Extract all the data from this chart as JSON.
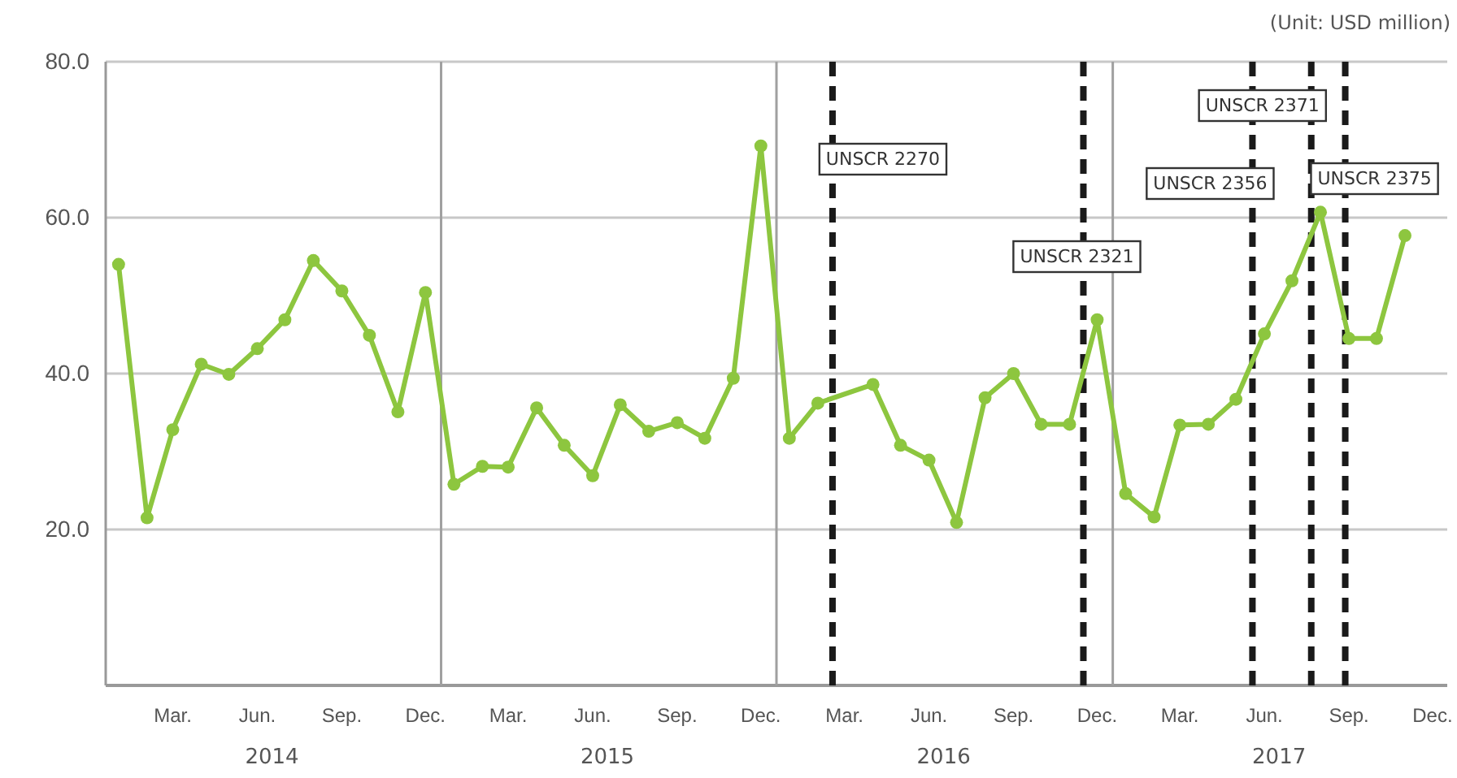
{
  "chart_data": {
    "type": "line",
    "x": [
      "2014-01-15",
      "2014-02-15",
      "2014-03-15",
      "2014-04-15",
      "2014-05-15",
      "2014-06-15",
      "2014-07-15",
      "2014-08-15",
      "2014-09-15",
      "2014-10-15",
      "2014-11-15",
      "2014-12-15",
      "2015-01-15",
      "2015-02-15",
      "2015-03-15",
      "2015-04-15",
      "2015-05-15",
      "2015-06-15",
      "2015-07-15",
      "2015-08-15",
      "2015-09-15",
      "2015-10-15",
      "2015-11-15",
      "2015-12-15",
      "2016-01-15",
      "2016-02-15",
      "2016-04-15",
      "2016-05-15",
      "2016-06-15",
      "2016-07-15",
      "2016-08-15",
      "2016-09-15",
      "2016-10-15",
      "2016-11-15",
      "2016-12-15",
      "2017-01-15",
      "2017-02-15",
      "2017-03-15",
      "2017-04-15",
      "2017-05-15",
      "2017-06-15",
      "2017-07-15",
      "2017-08-15",
      "2017-09-15",
      "2017-10-15",
      "2017-11-15"
    ],
    "series": [
      {
        "color": "#8dc63f",
        "values": [
          54.0,
          21.5,
          32.8,
          41.2,
          39.9,
          43.2,
          46.9,
          54.5,
          50.6,
          44.9,
          35.1,
          50.4,
          25.8,
          28.1,
          28.0,
          35.6,
          30.8,
          26.9,
          36.0,
          32.6,
          33.7,
          31.7,
          39.4,
          69.2,
          31.7,
          36.2,
          38.6,
          30.8,
          28.9,
          20.9,
          36.9,
          40.0,
          33.5,
          33.5,
          46.9,
          24.6,
          21.6,
          33.4,
          33.5,
          36.7,
          45.1,
          51.9,
          60.7,
          44.5,
          44.5,
          57.7
        ]
      }
    ],
    "xlim": [
      "2014-01-01",
      "2017-12-31"
    ],
    "xticks": [
      {
        "value": "2014-03-15",
        "label": "Mar."
      },
      {
        "value": "2014-06-15",
        "label": "Jun."
      },
      {
        "value": "2014-09-15",
        "label": "Sep."
      },
      {
        "value": "2014-12-15",
        "label": "Dec."
      },
      {
        "value": "2015-03-15",
        "label": "Mar."
      },
      {
        "value": "2015-06-15",
        "label": "Jun."
      },
      {
        "value": "2015-09-15",
        "label": "Sep."
      },
      {
        "value": "2015-12-15",
        "label": "Dec."
      },
      {
        "value": "2016-03-15",
        "label": "Mar."
      },
      {
        "value": "2016-06-15",
        "label": "Jun."
      },
      {
        "value": "2016-09-15",
        "label": "Sep."
      },
      {
        "value": "2016-12-15",
        "label": "Dec."
      },
      {
        "value": "2017-03-15",
        "label": "Mar."
      },
      {
        "value": "2017-06-15",
        "label": "Jun."
      },
      {
        "value": "2017-09-15",
        "label": "Sep."
      },
      {
        "value": "2017-12-15",
        "label": "Dec."
      }
    ],
    "ylim": [
      0,
      80
    ],
    "yticks": [
      {
        "value": 20,
        "label": "20.0"
      },
      {
        "value": 40,
        "label": "40.0"
      },
      {
        "value": 60,
        "label": "60.0"
      },
      {
        "value": 80,
        "label": "80.0"
      }
    ],
    "grid": "y",
    "marker": "circle",
    "line_style": "solid",
    "ref_lines": [
      {
        "axis": "x",
        "value": "2015-01-01",
        "color": "#a0a0a0",
        "line_style": "solid"
      },
      {
        "axis": "x",
        "value": "2016-01-01",
        "color": "#a0a0a0",
        "line_style": "solid"
      },
      {
        "axis": "x",
        "value": "2017-01-01",
        "color": "#a0a0a0",
        "line_style": "solid"
      },
      {
        "axis": "x",
        "value": "2016-03-02",
        "label": "UNSCR 2270",
        "color": "#1a1a1a",
        "line_style": "dashed"
      },
      {
        "axis": "x",
        "value": "2016-11-30",
        "label": "UNSCR 2321",
        "color": "#1a1a1a",
        "line_style": "dashed"
      },
      {
        "axis": "x",
        "value": "2017-06-02",
        "label": "UNSCR 2356",
        "color": "#1a1a1a",
        "line_style": "dashed"
      },
      {
        "axis": "x",
        "value": "2017-08-05",
        "label": "UNSCR 2371",
        "color": "#1a1a1a",
        "line_style": "dashed"
      },
      {
        "axis": "x",
        "value": "2017-09-11",
        "label": "UNSCR 2375",
        "color": "#1a1a1a",
        "line_style": "dashed"
      }
    ],
    "annotations": [
      "(Unit: USD million)",
      "2014",
      "2015",
      "2016",
      "2017"
    ]
  }
}
